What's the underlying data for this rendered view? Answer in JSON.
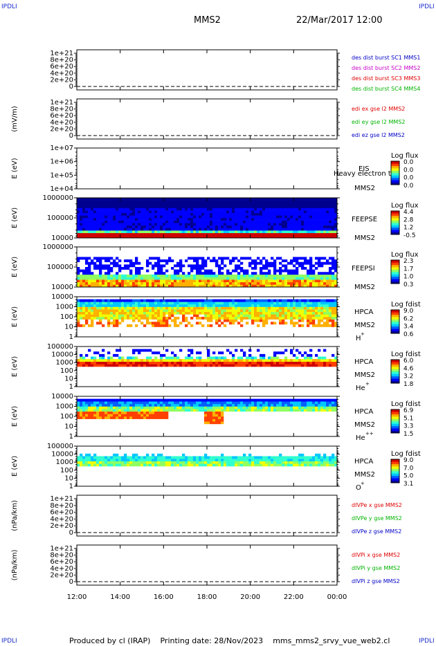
{
  "corners": {
    "tl": "IPDLI",
    "tr": "IPDLI",
    "bl": "IPDLI",
    "br": "IPDLI"
  },
  "header": {
    "spacecraft": "MMS2",
    "datetime": "22/Mar/2017 12:00"
  },
  "footer": {
    "producer": "Produced by cl (IRAP)",
    "printing": "Printing date: 28/Nov/2023",
    "script": "mms_mms2_srvy_vue_web2.cl"
  },
  "colors": {
    "axis": "#000000",
    "red": "#e00000",
    "green": "#00b400",
    "blue": "#0000c8",
    "magenta": "#c800c8",
    "mapLow": "#0000cc",
    "mapMid": "#00cc66",
    "mapHigh": "#ff0000",
    "background": "#ffffff"
  },
  "chart_data": {
    "type": "heatmap",
    "x_ticks": [
      "12:00",
      "14:00",
      "16:00",
      "18:00",
      "20:00",
      "22:00",
      "00:00"
    ],
    "panels": [
      {
        "id": "p1",
        "kind": "line",
        "ylabel": "",
        "yticks": [
          "1e+21",
          "8e+20",
          "6e+20",
          "4e+20",
          "2e+20",
          "0"
        ],
        "legend": [
          {
            "text": "des dist burst SC1 MMS1",
            "color": "#0000c8"
          },
          {
            "text": "des dist burst SC2 MMS2",
            "color": "#c800c8"
          },
          {
            "text": "des dist burst SC3 MMS3",
            "color": "#e00000"
          },
          {
            "text": "des dist burst SC4 MMS4",
            "color": "#00b400"
          }
        ]
      },
      {
        "id": "p2",
        "kind": "line",
        "ylabel": "(mV/m)",
        "yticks": [
          "1e+21",
          "8e+20",
          "6e+20",
          "4e+20",
          "2e+20",
          "0"
        ],
        "legend": [
          {
            "text": "edi ex gse l2 MMS2",
            "color": "#e00000"
          },
          {
            "text": "edi ey gse l2 MMS2",
            "color": "#00b400"
          },
          {
            "text": "edi ez gse l2 MMS2",
            "color": "#0000c8"
          }
        ]
      },
      {
        "id": "p3",
        "kind": "empty-spec",
        "ylabel": "E (eV)",
        "yticks": [
          "1e+07",
          "1e+06",
          "1e+05",
          "1e+04"
        ],
        "labels": [
          "EIS",
          "Heavy electron tof",
          "MMS2"
        ],
        "cbar_title": "Log flux",
        "cbar_ticks": [
          "0.0",
          "0.0",
          "0.0",
          "0.0"
        ]
      },
      {
        "id": "p4",
        "kind": "spec",
        "ylabel": "E (eV)",
        "yticks": [
          "1000000",
          "100000",
          "10000"
        ],
        "labels": [
          "FEEPSE",
          "MMS2"
        ],
        "cbar_title": "Log flux",
        "cbar_ticks": [
          "4.4",
          "2.8",
          "1.2",
          "-0.5"
        ]
      },
      {
        "id": "p5",
        "kind": "spec",
        "ylabel": "E (eV)",
        "yticks": [
          "1000000",
          "100000",
          "10000"
        ],
        "labels": [
          "FEEPSI",
          "MMS2"
        ],
        "cbar_title": "Log flux",
        "cbar_ticks": [
          "2.3",
          "1.7",
          "1.0",
          "0.3"
        ]
      },
      {
        "id": "p6",
        "kind": "spec",
        "ylabel": "E (eV)",
        "yticks": [
          "10000",
          "1000",
          "100",
          "10",
          "1"
        ],
        "labels": [
          "HPCA",
          "MMS2"
        ],
        "species": "H",
        "sup": "+",
        "cbar_title": "Log fdist",
        "cbar_ticks": [
          "9.0",
          "6.2",
          "3.4",
          "0.6"
        ]
      },
      {
        "id": "p7",
        "kind": "spec",
        "ylabel": "E (eV)",
        "yticks": [
          "100000",
          "10000",
          "1000",
          "100",
          "10",
          "1"
        ],
        "labels": [
          "HPCA",
          "MMS2"
        ],
        "species": "He",
        "sup": "+",
        "cbar_title": "Log fdist",
        "cbar_ticks": [
          "6.0",
          "4.6",
          "3.2",
          "1.8"
        ]
      },
      {
        "id": "p8",
        "kind": "spec",
        "ylabel": "E (eV)",
        "yticks": [
          "10000",
          "1000",
          "100",
          "10",
          "1"
        ],
        "labels": [
          "HPCA",
          "MMS2"
        ],
        "species": "He",
        "sup": "++",
        "cbar_title": "Log fdist",
        "cbar_ticks": [
          "6.9",
          "5.1",
          "3.3",
          "1.5"
        ]
      },
      {
        "id": "p9",
        "kind": "spec",
        "ylabel": "E (eV)",
        "yticks": [
          "100000",
          "10000",
          "1000",
          "100",
          "10",
          "1"
        ],
        "labels": [
          "HPCA",
          "MMS2"
        ],
        "species": "O",
        "sup": "+",
        "cbar_title": "Log fdist",
        "cbar_ticks": [
          "9.0",
          "7.0",
          "5.0",
          "3.1"
        ]
      },
      {
        "id": "p10",
        "kind": "line",
        "ylabel": "(nPa/km)",
        "yticks": [
          "1e+21",
          "8e+20",
          "6e+20",
          "4e+20",
          "2e+20",
          "0"
        ],
        "legend": [
          {
            "text": "dIVPe x gse MMS2",
            "color": "#e00000"
          },
          {
            "text": "dIVPe y gse MMS2",
            "color": "#00b400"
          },
          {
            "text": "dIVPe z gse MMS2",
            "color": "#0000c8"
          }
        ]
      },
      {
        "id": "p11",
        "kind": "line",
        "ylabel": "(nPa/km)",
        "yticks": [
          "1e+21",
          "8e+20",
          "6e+20",
          "4e+20",
          "2e+20",
          "0"
        ],
        "legend": [
          {
            "text": "dIVPi x gse MMS2",
            "color": "#e00000"
          },
          {
            "text": "dIVPi y gse MMS2",
            "color": "#00b400"
          },
          {
            "text": "dIVPi z gse MMS2",
            "color": "#0000c8"
          }
        ]
      }
    ]
  }
}
